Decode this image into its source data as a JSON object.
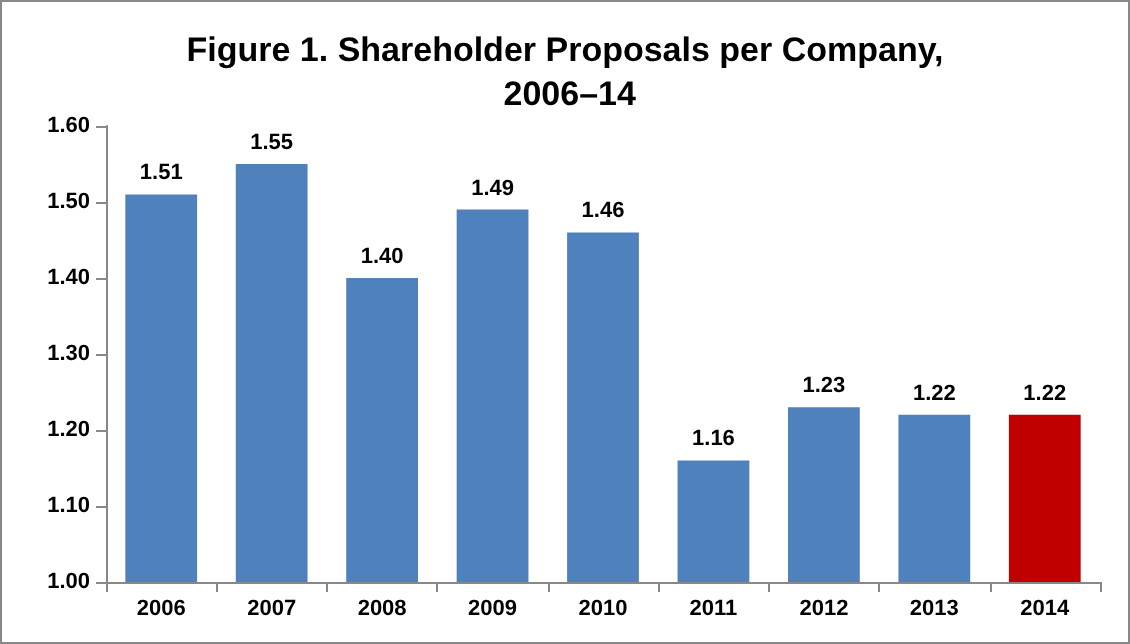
{
  "chart_data": {
    "type": "bar",
    "title": "Figure 1. Shareholder Proposals per Company, 2006–14",
    "categories": [
      "2006",
      "2007",
      "2008",
      "2009",
      "2010",
      "2011",
      "2012",
      "2013",
      "2014"
    ],
    "values": [
      1.51,
      1.55,
      1.4,
      1.49,
      1.46,
      1.16,
      1.23,
      1.22,
      1.22
    ],
    "colors": [
      "#4f81bd",
      "#4f81bd",
      "#4f81bd",
      "#4f81bd",
      "#4f81bd",
      "#4f81bd",
      "#4f81bd",
      "#4f81bd",
      "#c00000"
    ],
    "value_labels": [
      "1.51",
      "1.55",
      "1.40",
      "1.49",
      "1.46",
      "1.16",
      "1.23",
      "1.22",
      "1.22"
    ],
    "ylim": [
      1,
      1.6
    ],
    "yticks": [
      {
        "value": 1,
        "label": "1.00"
      },
      {
        "value": 1.1,
        "label": "1.10"
      },
      {
        "value": 1.2,
        "label": "1.20"
      },
      {
        "value": 1.3,
        "label": "1.30"
      },
      {
        "value": 1.4,
        "label": "1.40"
      },
      {
        "value": 1.5,
        "label": "1.50"
      },
      {
        "value": 1.6,
        "label": "1.60"
      }
    ],
    "grid": false
  }
}
